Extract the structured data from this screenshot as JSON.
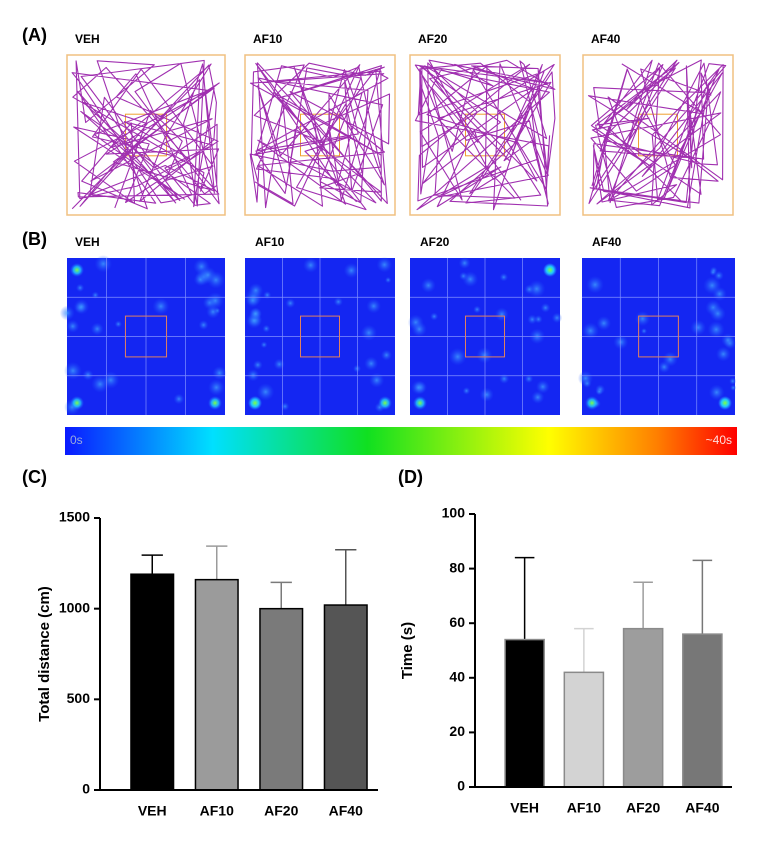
{
  "panels": {
    "A": {
      "label": "(A)",
      "groups": [
        "VEH",
        "AF10",
        "AF20",
        "AF40"
      ]
    },
    "B": {
      "label": "(B)",
      "groups": [
        "VEH",
        "AF10",
        "AF20",
        "AF40"
      ],
      "colorbar": {
        "min_label": "0s",
        "max_label": "~40s"
      }
    }
  },
  "chart_data": [
    {
      "type": "bar",
      "panel_label": "(C)",
      "ylabel": "Total distance (cm)",
      "categories": [
        "VEH",
        "AF10",
        "AF20",
        "AF40"
      ],
      "values": [
        1190,
        1160,
        1000,
        1020
      ],
      "errors": [
        105,
        185,
        145,
        305
      ],
      "colors": [
        "#000000",
        "#9b9b9b",
        "#7a7a7a",
        "#555555"
      ],
      "edgecolor": "#000000",
      "ylim": [
        0,
        1500
      ],
      "yticks": [
        0,
        500,
        1000,
        1500
      ]
    },
    {
      "type": "bar",
      "panel_label": "(D)",
      "ylabel": "Time (s)",
      "categories": [
        "VEH",
        "AF10",
        "AF20",
        "AF40"
      ],
      "values": [
        54,
        42,
        58,
        56
      ],
      "errors": [
        30,
        16,
        17,
        27
      ],
      "colors": [
        "#000000",
        "#d3d3d3",
        "#9d9d9d",
        "#777777"
      ],
      "edgecolor": "#8a8a8a",
      "ylim": [
        0,
        100
      ],
      "yticks": [
        0,
        20,
        40,
        60,
        80,
        100
      ]
    }
  ]
}
